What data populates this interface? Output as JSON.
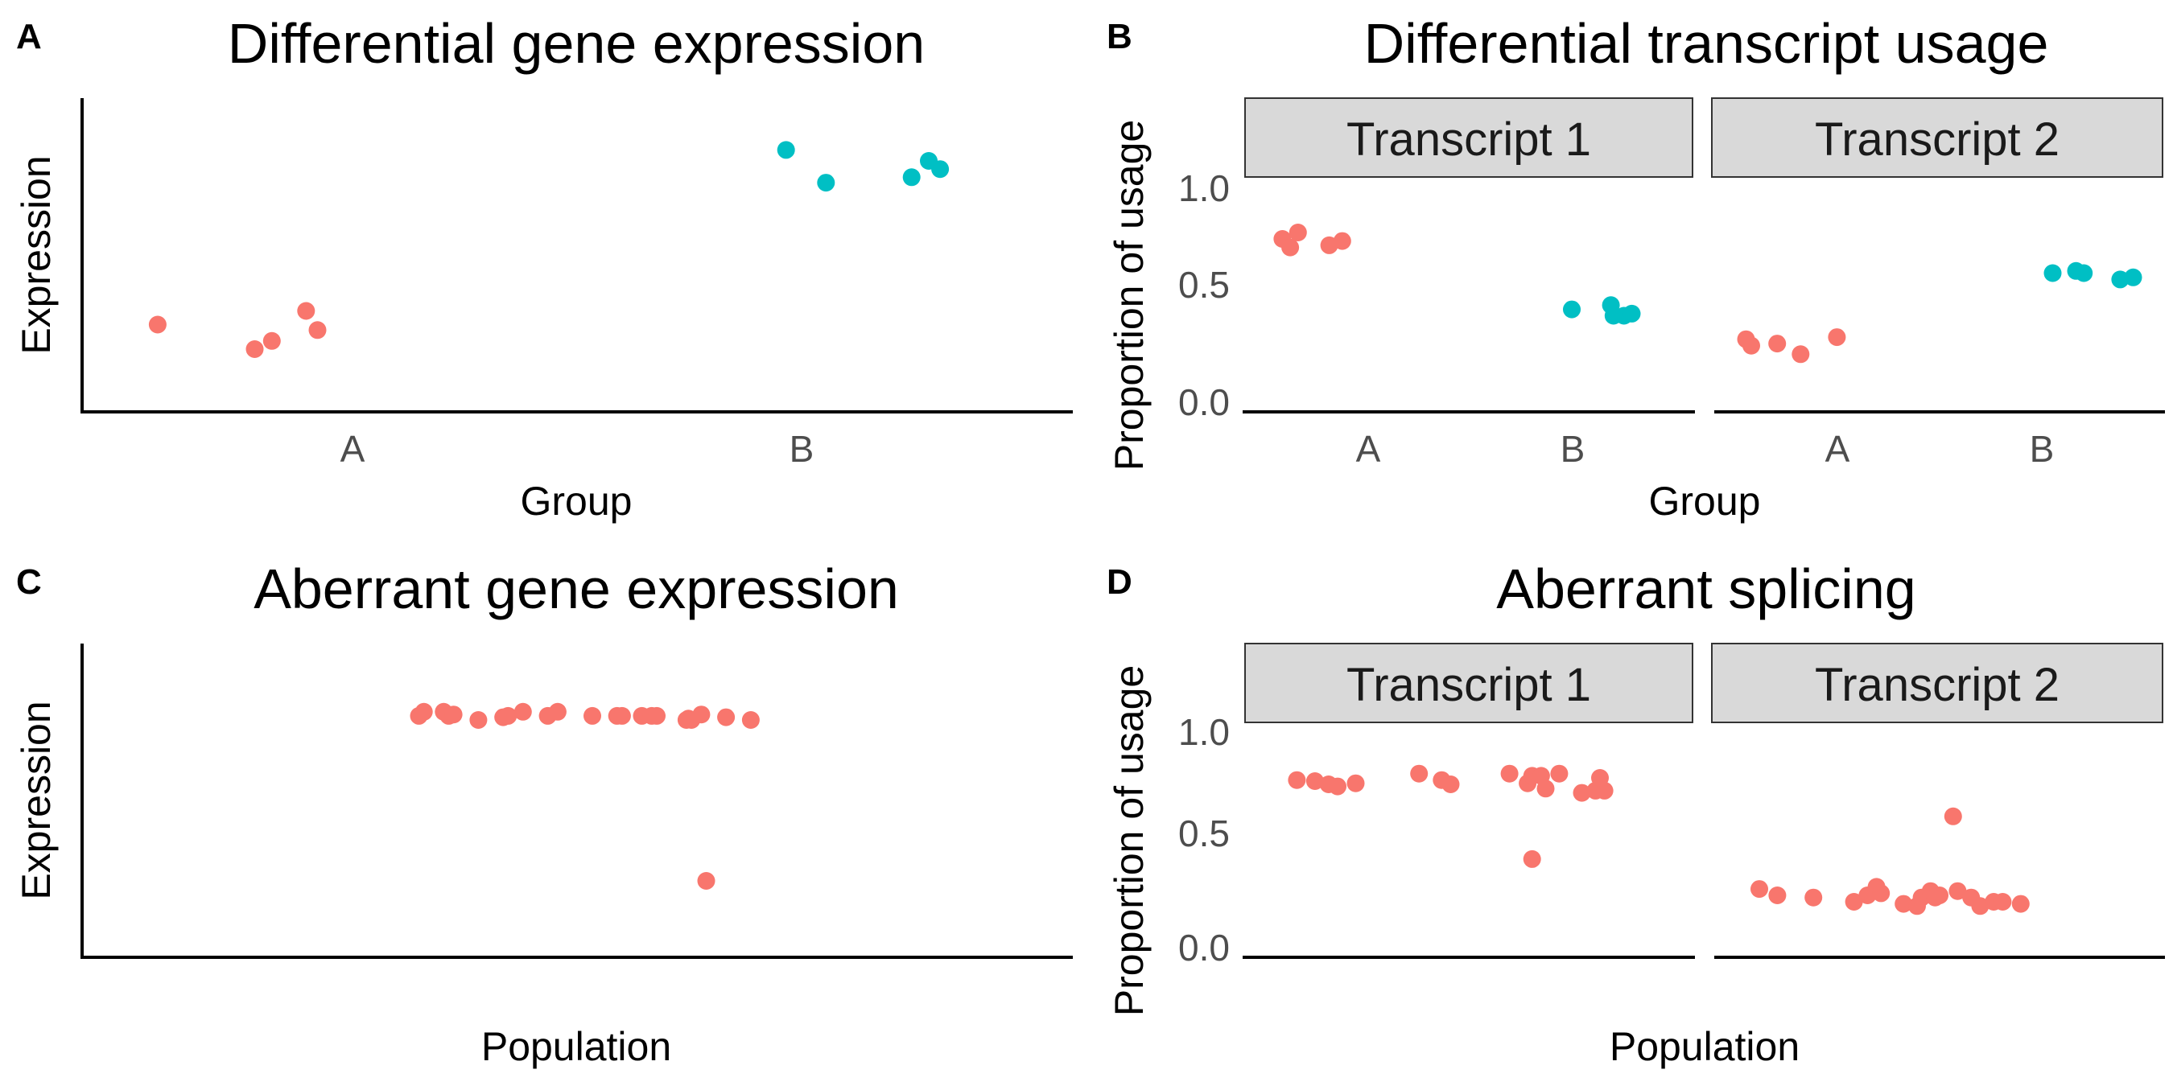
{
  "colors": {
    "red": "#F8766D",
    "teal": "#00BFC4"
  },
  "chart_data": [
    {
      "panel": "A",
      "type": "scatter",
      "title": "Differential gene expression",
      "xlabel": "Group",
      "ylabel": "Expression",
      "categories": [
        "A",
        "B"
      ],
      "ylim": [
        0,
        1.15
      ],
      "series": [
        {
          "category": "A",
          "color": "red",
          "x": [
            -0.18,
            -0.01,
            0.02,
            0.08,
            0.1
          ],
          "y": [
            0.32,
            0.23,
            0.26,
            0.37,
            0.3
          ]
        },
        {
          "category": "B",
          "color": "teal",
          "x": [
            -0.19,
            -0.12,
            0.03,
            0.06,
            0.08
          ],
          "y": [
            0.96,
            0.84,
            0.86,
            0.92,
            0.89
          ]
        }
      ]
    },
    {
      "panel": "B",
      "type": "scatter",
      "title": "Differential transcript usage",
      "xlabel": "Group",
      "ylabel": "Proportion of usage",
      "categories": [
        "A",
        "B"
      ],
      "ylim": [
        -0.05,
        1.05
      ],
      "yticks": [
        "0.0",
        "0.5",
        "1.0"
      ],
      "facets": [
        {
          "label": "Transcript 1",
          "series": [
            {
              "category": "A",
              "color": "red",
              "x": [
                -0.16,
                -0.13,
                -0.1,
                0.02,
                0.07
              ],
              "y": [
                0.76,
                0.72,
                0.79,
                0.73,
                0.75
              ]
            },
            {
              "category": "B",
              "color": "teal",
              "x": [
                -0.16,
                -0.01,
                0.0,
                0.04,
                0.07
              ],
              "y": [
                0.43,
                0.45,
                0.4,
                0.4,
                0.41
              ]
            }
          ]
        },
        {
          "label": "Transcript 2",
          "series": [
            {
              "category": "A",
              "color": "red",
              "x": [
                -0.19,
                -0.17,
                -0.07,
                0.02,
                0.16
              ],
              "y": [
                0.29,
                0.26,
                0.27,
                0.22,
                0.3
              ]
            },
            {
              "category": "B",
              "color": "teal",
              "x": [
                -0.12,
                -0.03,
                0.0,
                0.14,
                0.19
              ],
              "y": [
                0.6,
                0.61,
                0.6,
                0.57,
                0.58
              ]
            }
          ]
        }
      ]
    },
    {
      "panel": "C",
      "type": "scatter",
      "title": "Aberrant gene expression",
      "xlabel": "Population",
      "ylabel": "Expression",
      "ylim": [
        0,
        1.15
      ],
      "series": [
        {
          "color": "red",
          "x": [
            0.34,
            0.345,
            0.365,
            0.37,
            0.375,
            0.4,
            0.425,
            0.43,
            0.445,
            0.47,
            0.48,
            0.515,
            0.54,
            0.545,
            0.565,
            0.575,
            0.58,
            0.61,
            0.612,
            0.615,
            0.625,
            0.65,
            0.675
          ],
          "y": [
            0.885,
            0.9,
            0.9,
            0.885,
            0.89,
            0.87,
            0.88,
            0.885,
            0.9,
            0.885,
            0.9,
            0.885,
            0.885,
            0.885,
            0.885,
            0.885,
            0.885,
            0.87,
            0.875,
            0.87,
            0.89,
            0.88,
            0.87
          ]
        },
        {
          "color": "red",
          "x": [
            0.63
          ],
          "y": [
            0.28
          ]
        }
      ]
    },
    {
      "panel": "D",
      "type": "scatter",
      "title": "Aberrant splicing",
      "xlabel": "Population",
      "ylabel": "Proportion of usage",
      "ylim": [
        -0.05,
        1.05
      ],
      "yticks": [
        "0.0",
        "0.5",
        "1.0"
      ],
      "facets": [
        {
          "label": "Transcript 1",
          "series": [
            {
              "color": "red",
              "x": [
                0.12,
                0.16,
                0.19,
                0.21,
                0.25,
                0.39,
                0.44,
                0.46,
                0.59,
                0.63,
                0.64,
                0.66,
                0.67,
                0.7,
                0.75,
                0.78,
                0.8,
                0.79
              ],
              "y": [
                0.78,
                0.775,
                0.76,
                0.75,
                0.765,
                0.81,
                0.78,
                0.76,
                0.81,
                0.765,
                0.8,
                0.8,
                0.74,
                0.81,
                0.72,
                0.73,
                0.73,
                0.79
              ]
            },
            {
              "color": "red",
              "x": [
                0.64
              ],
              "y": [
                0.41
              ]
            }
          ]
        },
        {
          "label": "Transcript 2",
          "series": [
            {
              "color": "red",
              "x": [
                0.1,
                0.14,
                0.22,
                0.31,
                0.34,
                0.36,
                0.37,
                0.42,
                0.45,
                0.46,
                0.48,
                0.5,
                0.49,
                0.54,
                0.57,
                0.59,
                0.62,
                0.64,
                0.68
              ],
              "y": [
                0.27,
                0.24,
                0.23,
                0.21,
                0.24,
                0.28,
                0.25,
                0.2,
                0.19,
                0.23,
                0.26,
                0.24,
                0.23,
                0.26,
                0.23,
                0.19,
                0.21,
                0.21,
                0.2
              ]
            },
            {
              "color": "red",
              "x": [
                0.53
              ],
              "y": [
                0.61
              ]
            }
          ]
        }
      ]
    }
  ]
}
